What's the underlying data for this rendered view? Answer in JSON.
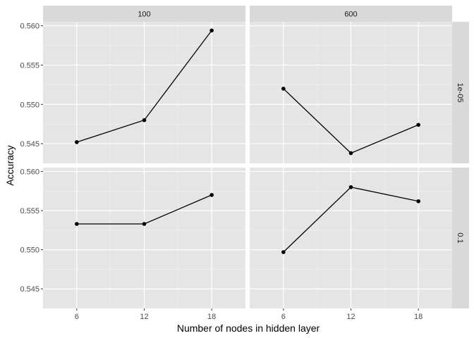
{
  "chart_data": {
    "type": "line",
    "xlabel": "Number of nodes in hidden layer",
    "ylabel": "Accuracy",
    "x_ticks": [
      6,
      12,
      18
    ],
    "x_range": [
      3,
      21
    ],
    "y_ticks": [
      0.545,
      0.55,
      0.555,
      0.56
    ],
    "y_tick_labels": [
      "0.545",
      "0.550",
      "0.555",
      "0.560"
    ],
    "y_range": [
      0.5425,
      0.5605
    ],
    "grid": true,
    "column_strips": [
      "100",
      "600"
    ],
    "row_strips": [
      "1e-05",
      "0.1"
    ],
    "panels": [
      {
        "col": "100",
        "row": "1e-05",
        "x": [
          6,
          12,
          18
        ],
        "y": [
          0.5452,
          0.548,
          0.5594
        ]
      },
      {
        "col": "600",
        "row": "1e-05",
        "x": [
          6,
          12,
          18
        ],
        "y": [
          0.552,
          0.5438,
          0.5474
        ]
      },
      {
        "col": "100",
        "row": "0.1",
        "x": [
          6,
          12,
          18
        ],
        "y": [
          0.5533,
          0.5533,
          0.557
        ]
      },
      {
        "col": "600",
        "row": "0.1",
        "x": [
          6,
          12,
          18
        ],
        "y": [
          0.5497,
          0.558,
          0.5562
        ]
      }
    ]
  },
  "colors": {
    "panel_background": "#e5e5e5",
    "strip_background": "#d9d9d9",
    "grid_major": "#ffffff",
    "line": "#000000",
    "point": "#000000"
  }
}
